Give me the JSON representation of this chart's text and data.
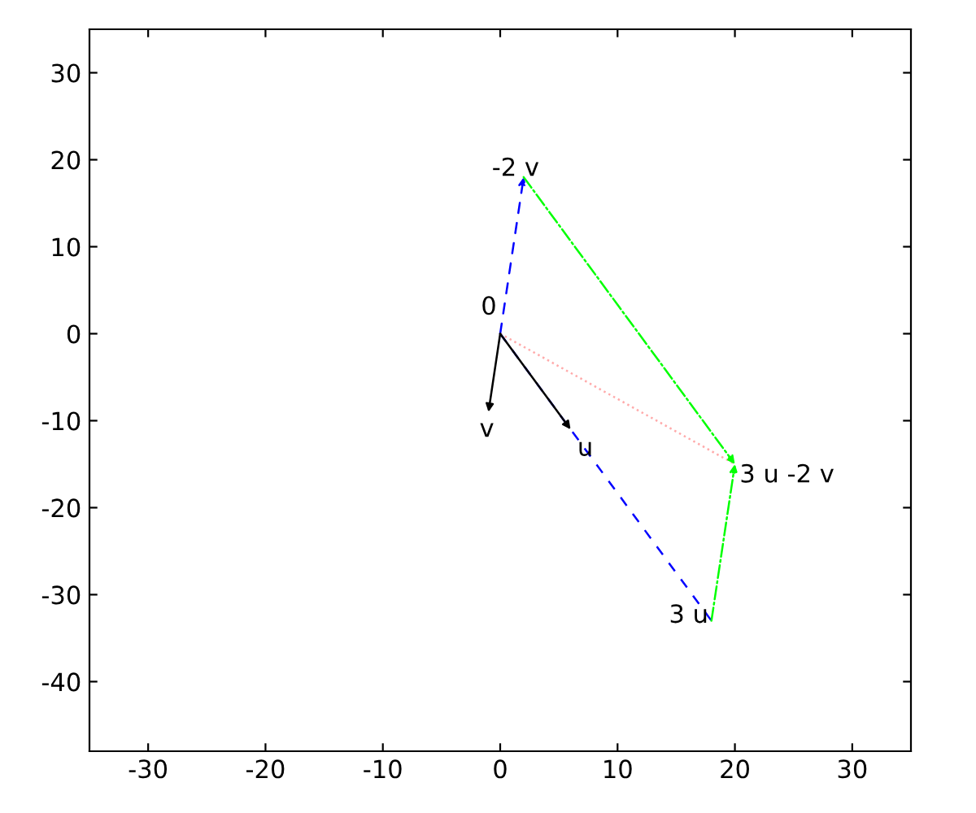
{
  "chart_data": {
    "type": "line",
    "series": [
      {
        "x": [
          0,
          2
        ],
        "values": [
          0,
          18
        ],
        "color": "#0000ff",
        "line_style": "dashed"
      },
      {
        "x": [
          0,
          18
        ],
        "values": [
          0,
          -33
        ],
        "color": "#0000ff",
        "line_style": "dashed"
      },
      {
        "x": [
          0,
          20
        ],
        "values": [
          0,
          -15
        ],
        "color": "#ffaaaa",
        "line_style": "dotted"
      },
      {
        "x": [
          2,
          20
        ],
        "values": [
          18,
          -15
        ],
        "color": "#00ff00",
        "line_style": "dashdot"
      },
      {
        "x": [
          18,
          20
        ],
        "values": [
          -33,
          -15
        ],
        "color": "#00ff00",
        "line_style": "dashdot"
      },
      {
        "x": [
          0,
          6
        ],
        "values": [
          0,
          -11
        ],
        "color": "#000000",
        "line_style": "solid"
      },
      {
        "x": [
          0,
          -1
        ],
        "values": [
          0,
          -9
        ],
        "color": "#000000",
        "line_style": "solid"
      }
    ],
    "annotations": [
      {
        "text": "0",
        "x": 0,
        "y": 0
      },
      {
        "text": "v",
        "x": -1,
        "y": -9
      },
      {
        "text": "u",
        "x": 6,
        "y": -11
      },
      {
        "text": "-2 v",
        "x": 2,
        "y": 18
      },
      {
        "text": "3 u",
        "x": 18,
        "y": -33
      },
      {
        "text": "3 u -2 v",
        "x": 20,
        "y": -15
      }
    ],
    "xlim": [
      -35,
      35
    ],
    "ylim": [
      -48,
      35
    ],
    "xticks": [
      -30,
      -20,
      -10,
      0,
      10,
      20,
      30
    ],
    "yticks": [
      -40,
      -30,
      -20,
      -10,
      0,
      10,
      20,
      30
    ],
    "grid": false,
    "legend": false
  }
}
